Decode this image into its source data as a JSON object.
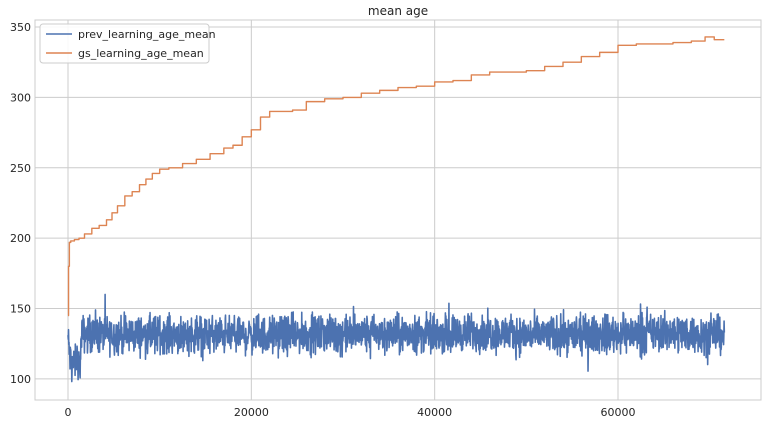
{
  "chart_data": {
    "type": "line",
    "title": "mean age",
    "xlabel": "",
    "ylabel": "",
    "xlim": [
      -3600,
      75600
    ],
    "ylim": [
      85,
      355
    ],
    "x_ticks": [
      0,
      20000,
      40000,
      60000
    ],
    "x_tick_labels": [
      "0",
      "20000",
      "40000",
      "60000"
    ],
    "y_ticks": [
      100,
      150,
      200,
      250,
      300,
      350
    ],
    "y_tick_labels": [
      "100",
      "150",
      "200",
      "250",
      "300",
      "350"
    ],
    "grid": true,
    "legend_position": "top-left",
    "series": [
      {
        "name": "prev_learning_age_mean",
        "color": "#4c72b0",
        "style": "noisy",
        "x": [
          0,
          200,
          400,
          700,
          1000,
          1300,
          1500,
          5000,
          10000,
          20000,
          30000,
          40000,
          45000,
          50000,
          60000,
          67000,
          70000,
          71600
        ],
        "y": [
          130,
          115,
          112,
          110,
          115,
          108,
          132,
          131,
          132,
          131,
          132,
          132,
          133,
          131,
          132,
          133,
          131,
          132
        ],
        "min": 96,
        "max": 160
      },
      {
        "name": "gs_learning_age_mean",
        "color": "#dd8452",
        "style": "step",
        "x": [
          0,
          60,
          150,
          300,
          700,
          1200,
          1800,
          2600,
          3400,
          4200,
          4800,
          5400,
          6200,
          7000,
          7800,
          8500,
          9200,
          10000,
          11000,
          12500,
          14000,
          15500,
          17000,
          18000,
          19000,
          20000,
          21000,
          22000,
          24500,
          26000,
          28000,
          30000,
          32000,
          34000,
          36000,
          38000,
          40000,
          42000,
          44000,
          46000,
          50000,
          52000,
          54000,
          56000,
          58000,
          60000,
          62000,
          64000,
          66000,
          68000,
          69500,
          70500,
          71600
        ],
        "y": [
          145,
          180,
          197,
          198,
          199,
          200,
          203,
          207,
          209,
          213,
          218,
          223,
          230,
          233,
          238,
          242,
          246,
          249,
          250,
          253,
          256,
          260,
          264,
          266,
          272,
          277,
          286,
          290,
          291,
          297,
          299,
          300,
          303,
          305,
          307,
          308,
          311,
          312,
          316,
          318,
          319,
          322,
          325,
          329,
          332,
          337,
          338,
          338,
          339,
          340,
          343,
          341,
          341
        ]
      }
    ]
  }
}
